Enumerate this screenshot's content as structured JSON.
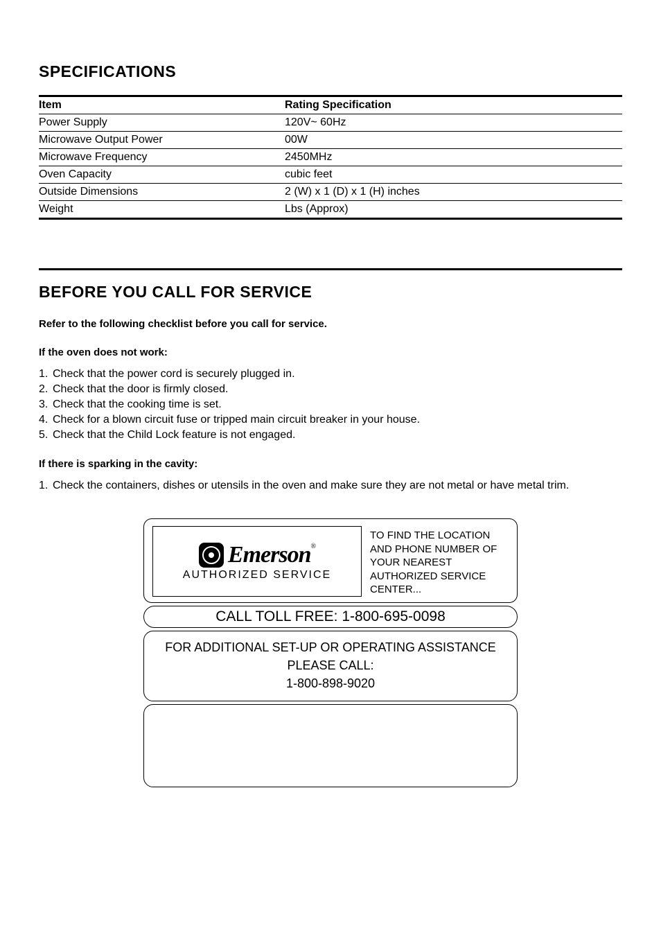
{
  "spec": {
    "title": "SPECIFICATIONS",
    "header_item": "Item",
    "header_rating": "Rating Specification",
    "rows": [
      {
        "item": "Power Supply",
        "rating": "120V~ 60Hz"
      },
      {
        "item": "Microwave Output Power",
        "rating": "      00W"
      },
      {
        "item": "Microwave Frequency",
        "rating": "2450MHz"
      },
      {
        "item": "Oven Capacity",
        "rating": "        cubic feet"
      },
      {
        "item": "Outside Dimensions",
        "rating": "2       (W) x 1       (D) x 1       (H) inches"
      },
      {
        "item": "Weight",
        "rating": "       Lbs (Approx)"
      }
    ]
  },
  "service": {
    "title": "BEFORE YOU CALL FOR SERVICE",
    "intro": "Refer to the following checklist before you call for service.",
    "group1_title": "If the oven does not work:",
    "group1": [
      "Check that the power cord is securely plugged in.",
      "Check that the door is firmly closed.",
      "Check that the cooking time is set.",
      "Check for a blown circuit fuse or tripped main circuit breaker in your house.",
      "Check that the Child Lock feature is not engaged."
    ],
    "group2_title": "If there is sparking in the cavity:",
    "group2": [
      "Check the containers, dishes or utensils in the oven and make sure they are not metal or have metal trim."
    ]
  },
  "card": {
    "brand": "Emerson",
    "reg": "®",
    "auth": "AUTHORIZED SERVICE",
    "find_loc": "TO FIND THE LOCATION AND PHONE NUMBER OF YOUR NEAREST AUTHORIZED SERVICE CENTER...",
    "toll_free": "CALL TOLL FREE: 1-800-695-0098",
    "assist_l1": "FOR ADDITIONAL SET-UP OR OPERATING ASSISTANCE",
    "assist_l2": "PLEASE CALL:",
    "assist_l3": "1-800-898-9020"
  }
}
